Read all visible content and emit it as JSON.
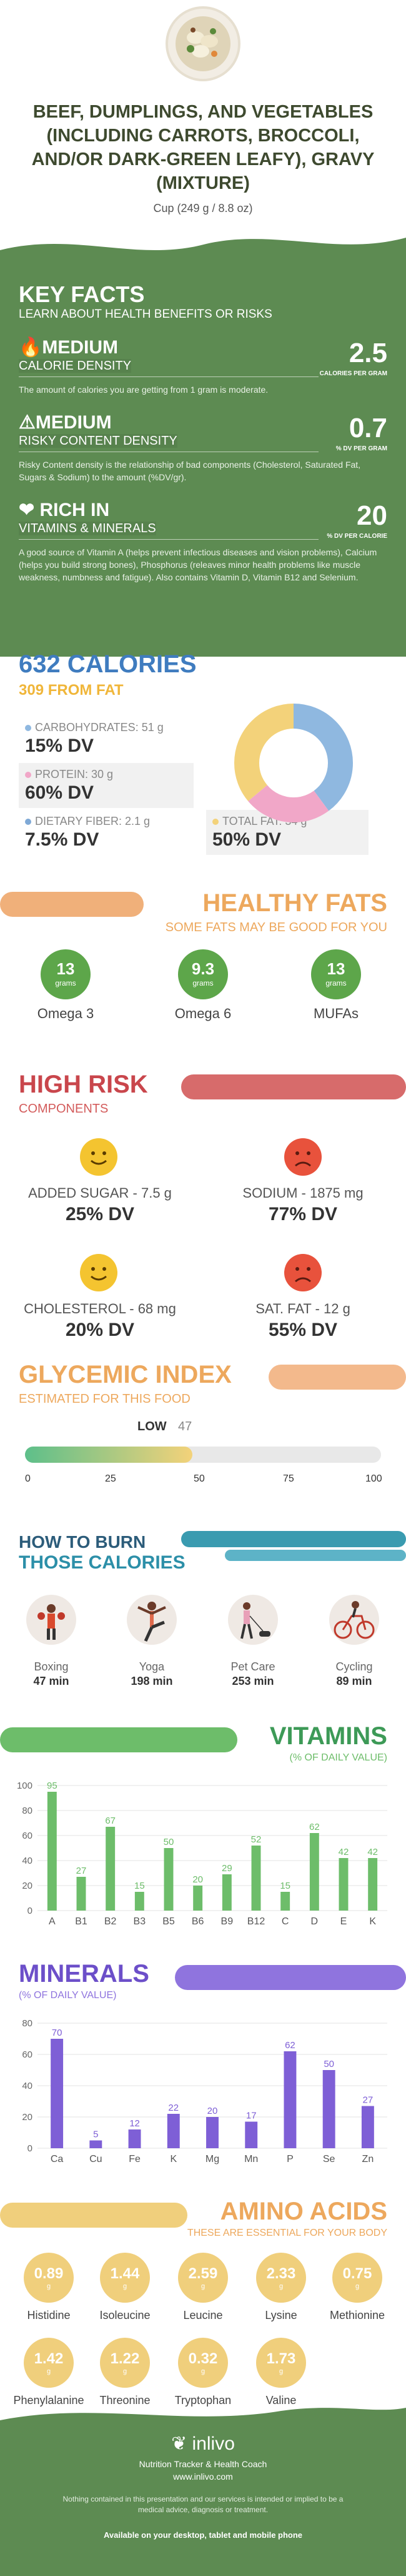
{
  "header": {
    "title": "BEEF, DUMPLINGS, AND VEGETABLES (INCLUDING CARROTS, BROCCOLI, AND/OR DARK-GREEN LEAFY), GRAVY (MIXTURE)",
    "serving": "Cup (249 g / 8.8 oz)"
  },
  "key_facts": {
    "title": "KEY FACTS",
    "subtitle": "LEARN ABOUT HEALTH BENEFITS OR RISKS",
    "items": [
      {
        "level": "MEDIUM",
        "name": "CALORIE DENSITY",
        "value": "2.5",
        "unit": "CALORIES PER GRAM",
        "desc": "The amount of calories you are getting from 1 gram is moderate."
      },
      {
        "level": "MEDIUM",
        "name": "RISKY CONTENT DENSITY",
        "value": "0.7",
        "unit": "% DV PER GRAM",
        "desc": "Risky Content density is the relationship of bad components (Cholesterol, Saturated Fat, Sugars & Sodium) to the amount (%DV/gr)."
      },
      {
        "level": "RICH IN",
        "name": "VITAMINS & MINERALS",
        "value": "20",
        "unit": "% DV PER CALORIE",
        "desc": "A good source of Vitamin A (helps prevent infectious diseases and vision problems), Calcium (helps you build strong bones), Phosphorus (releaves minor health problems like muscle weakness, numbness and fatigue). Also contains Vitamin D, Vitamin B12 and Selenium."
      }
    ]
  },
  "calories": {
    "title": "632 CALORIES",
    "from_fat": "309 FROM FAT",
    "nutrients": [
      {
        "label": "CARBOHYDRATES: 51 g",
        "dv": "15% DV",
        "color": "#8fb8e0"
      },
      {
        "label": "PROTEIN: 30 g",
        "dv": "60% DV",
        "color": "#f1a7c8"
      },
      {
        "label": "DIETARY FIBER: 2.1 g",
        "dv": "7.5% DV",
        "color": "#7fa9d6"
      },
      {
        "label": "TOTAL FAT: 34 g",
        "dv": "50% DV",
        "color": "#f3d27a"
      }
    ]
  },
  "healthy_fats": {
    "title": "HEALTHY FATS",
    "subtitle": "SOME FATS MAY BE GOOD FOR YOU",
    "items": [
      {
        "value": "13",
        "unit": "grams",
        "label": "Omega 3"
      },
      {
        "value": "9.3",
        "unit": "grams",
        "label": "Omega 6"
      },
      {
        "value": "13",
        "unit": "grams",
        "label": "MUFAs"
      }
    ]
  },
  "high_risk": {
    "title": "HIGH RISK",
    "subtitle": "COMPONENTS",
    "items": [
      {
        "label": "ADDED SUGAR - 7.5 g",
        "dv": "25% DV",
        "mood": "happy"
      },
      {
        "label": "SODIUM - 1875 mg",
        "dv": "77% DV",
        "mood": "sad"
      },
      {
        "label": "CHOLESTEROL - 68 mg",
        "dv": "20% DV",
        "mood": "happy"
      },
      {
        "label": "SAT. FAT - 12 g",
        "dv": "55% DV",
        "mood": "sad"
      }
    ]
  },
  "glycemic": {
    "title": "GLYCEMIC INDEX",
    "subtitle": "ESTIMATED FOR THIS FOOD",
    "level": "LOW",
    "value": "47",
    "ticks": [
      "0",
      "25",
      "50",
      "75",
      "100"
    ]
  },
  "burn": {
    "title1": "HOW TO BURN",
    "title2": "THOSE CALORIES",
    "items": [
      {
        "label": "Boxing",
        "minutes": "47 min",
        "icon": "boxing-icon"
      },
      {
        "label": "Yoga",
        "minutes": "198 min",
        "icon": "yoga-icon"
      },
      {
        "label": "Pet Care",
        "minutes": "253 min",
        "icon": "pet-care-icon"
      },
      {
        "label": "Cycling",
        "minutes": "89 min",
        "icon": "cycling-icon"
      }
    ]
  },
  "vitamins": {
    "title": "VITAMINS",
    "subtitle": "(% OF DAILY VALUE)"
  },
  "minerals": {
    "title": "MINERALS",
    "subtitle": "(% OF DAILY VALUE)"
  },
  "chart_data": [
    {
      "type": "bar",
      "categories": [
        "A",
        "B1",
        "B2",
        "B3",
        "B5",
        "B6",
        "B9",
        "B12",
        "C",
        "D",
        "E",
        "K"
      ],
      "values": [
        95,
        27,
        67,
        15,
        50,
        20,
        29,
        52,
        15,
        62,
        42,
        42
      ],
      "ylim": [
        0,
        100
      ],
      "yticks": [
        "0",
        "20",
        "40",
        "60",
        "80",
        "100"
      ],
      "color": "#6dbd6a"
    },
    {
      "type": "bar",
      "categories": [
        "Ca",
        "Cu",
        "Fe",
        "K",
        "Mg",
        "Mn",
        "P",
        "Se",
        "Zn"
      ],
      "values": [
        70,
        5,
        12,
        22,
        20,
        17,
        62,
        50,
        27
      ],
      "ylim": [
        0,
        80
      ],
      "yticks": [
        "0",
        "20",
        "40",
        "60",
        "80"
      ],
      "color": "#7e5fd6"
    }
  ],
  "amino": {
    "title": "AMINO ACIDS",
    "subtitle": "THESE ARE ESSENTIAL FOR YOUR BODY",
    "items": [
      {
        "value": "0.89",
        "unit": "g",
        "label": "Histidine"
      },
      {
        "value": "1.44",
        "unit": "g",
        "label": "Isoleucine"
      },
      {
        "value": "2.59",
        "unit": "g",
        "label": "Leucine"
      },
      {
        "value": "2.33",
        "unit": "g",
        "label": "Lysine"
      },
      {
        "value": "0.75",
        "unit": "g",
        "label": "Methionine"
      },
      {
        "value": "1.42",
        "unit": "g",
        "label": "Phenylalanine"
      },
      {
        "value": "1.22",
        "unit": "g",
        "label": "Threonine"
      },
      {
        "value": "0.32",
        "unit": "g",
        "label": "Tryptophan"
      },
      {
        "value": "1.73",
        "unit": "g",
        "label": "Valine"
      }
    ]
  },
  "footer": {
    "brand": "inlivo",
    "tagline": "Nutrition Tracker & Health Coach",
    "site": "www.inlivo.com",
    "disclaimer": "Nothing contained in this presentation and our services is intended or implied to be a medical advice, diagnosis or treatment.",
    "available": "Available on your desktop, tablet and mobile phone"
  }
}
